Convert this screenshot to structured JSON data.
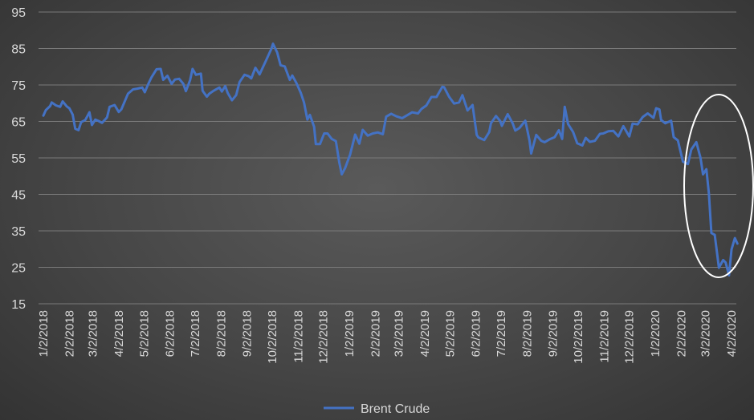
{
  "chart_data": {
    "type": "line",
    "title": "",
    "xlabel": "",
    "ylabel": "",
    "ylim": [
      15,
      95
    ],
    "yticks": [
      15,
      25,
      35,
      45,
      55,
      65,
      75,
      85,
      95
    ],
    "grid": true,
    "legend": "bottom",
    "xticks": [
      "1/2/2018",
      "2/2/2018",
      "3/2/2018",
      "4/2/2018",
      "5/2/2018",
      "6/2/2018",
      "7/2/2018",
      "8/2/2018",
      "9/2/2018",
      "10/2/2018",
      "11/2/2018",
      "12/2/2018",
      "1/2/2019",
      "2/2/2019",
      "3/2/2019",
      "4/2/2019",
      "5/2/2019",
      "6/2/2019",
      "7/2/2019",
      "8/2/2019",
      "9/2/2019",
      "10/2/2019",
      "11/2/2019",
      "12/2/2019",
      "1/2/2020",
      "2/2/2020",
      "3/2/2020",
      "4/2/2020"
    ],
    "series": [
      {
        "name": "Brent Crude",
        "color": "#4472c4",
        "points": [
          [
            "2018-01-02",
            66.6
          ],
          [
            "2018-01-05",
            68.1
          ],
          [
            "2018-01-10",
            69.2
          ],
          [
            "2018-01-12",
            70.2
          ],
          [
            "2018-01-17",
            69.4
          ],
          [
            "2018-01-22",
            69.0
          ],
          [
            "2018-01-25",
            70.5
          ],
          [
            "2018-01-30",
            69.1
          ],
          [
            "2018-02-02",
            68.6
          ],
          [
            "2018-02-06",
            66.9
          ],
          [
            "2018-02-09",
            63.0
          ],
          [
            "2018-02-13",
            62.6
          ],
          [
            "2018-02-16",
            64.8
          ],
          [
            "2018-02-21",
            65.4
          ],
          [
            "2018-02-26",
            67.5
          ],
          [
            "2018-03-01",
            64.0
          ],
          [
            "2018-03-05",
            65.5
          ],
          [
            "2018-03-09",
            65.1
          ],
          [
            "2018-03-13",
            64.6
          ],
          [
            "2018-03-19",
            66.1
          ],
          [
            "2018-03-22",
            69.0
          ],
          [
            "2018-03-28",
            69.5
          ],
          [
            "2018-04-02",
            67.6
          ],
          [
            "2018-04-05",
            68.3
          ],
          [
            "2018-04-10",
            71.0
          ],
          [
            "2018-04-13",
            72.6
          ],
          [
            "2018-04-19",
            73.8
          ],
          [
            "2018-04-24",
            74.0
          ],
          [
            "2018-04-30",
            74.3
          ],
          [
            "2018-05-03",
            73.0
          ],
          [
            "2018-05-07",
            75.2
          ],
          [
            "2018-05-11",
            77.1
          ],
          [
            "2018-05-17",
            79.3
          ],
          [
            "2018-05-22",
            79.4
          ],
          [
            "2018-05-25",
            76.4
          ],
          [
            "2018-05-30",
            77.5
          ],
          [
            "2018-06-04",
            75.3
          ],
          [
            "2018-06-08",
            76.5
          ],
          [
            "2018-06-13",
            76.7
          ],
          [
            "2018-06-18",
            75.3
          ],
          [
            "2018-06-21",
            73.3
          ],
          [
            "2018-06-26",
            76.3
          ],
          [
            "2018-06-29",
            79.4
          ],
          [
            "2018-07-03",
            77.8
          ],
          [
            "2018-07-09",
            78.1
          ],
          [
            "2018-07-11",
            73.4
          ],
          [
            "2018-07-16",
            71.8
          ],
          [
            "2018-07-19",
            72.6
          ],
          [
            "2018-07-24",
            73.4
          ],
          [
            "2018-07-31",
            74.3
          ],
          [
            "2018-08-03",
            73.2
          ],
          [
            "2018-08-07",
            74.7
          ],
          [
            "2018-08-10",
            72.8
          ],
          [
            "2018-08-15",
            70.8
          ],
          [
            "2018-08-20",
            72.2
          ],
          [
            "2018-08-24",
            75.8
          ],
          [
            "2018-08-30",
            77.8
          ],
          [
            "2018-09-04",
            77.4
          ],
          [
            "2018-09-07",
            76.8
          ],
          [
            "2018-09-12",
            79.7
          ],
          [
            "2018-09-17",
            77.9
          ],
          [
            "2018-09-20",
            79.4
          ],
          [
            "2018-09-25",
            81.9
          ],
          [
            "2018-10-01",
            84.9
          ],
          [
            "2018-10-03",
            86.3
          ],
          [
            "2018-10-08",
            83.9
          ],
          [
            "2018-10-12",
            80.4
          ],
          [
            "2018-10-17",
            80.1
          ],
          [
            "2018-10-23",
            76.4
          ],
          [
            "2018-10-26",
            77.6
          ],
          [
            "2018-10-31",
            75.5
          ],
          [
            "2018-11-05",
            72.9
          ],
          [
            "2018-11-09",
            70.2
          ],
          [
            "2018-11-13",
            65.5
          ],
          [
            "2018-11-16",
            66.8
          ],
          [
            "2018-11-21",
            63.5
          ],
          [
            "2018-11-23",
            58.8
          ],
          [
            "2018-11-28",
            58.8
          ],
          [
            "2018-12-03",
            61.7
          ],
          [
            "2018-12-07",
            61.7
          ],
          [
            "2018-12-12",
            60.2
          ],
          [
            "2018-12-17",
            59.6
          ],
          [
            "2018-12-21",
            53.8
          ],
          [
            "2018-12-24",
            50.5
          ],
          [
            "2018-12-28",
            52.2
          ],
          [
            "2019-01-03",
            55.9
          ],
          [
            "2019-01-09",
            61.4
          ],
          [
            "2019-01-14",
            58.9
          ],
          [
            "2019-01-18",
            62.7
          ],
          [
            "2019-01-24",
            61.1
          ],
          [
            "2019-01-30",
            61.7
          ],
          [
            "2019-02-05",
            62.0
          ],
          [
            "2019-02-11",
            61.5
          ],
          [
            "2019-02-15",
            66.3
          ],
          [
            "2019-02-21",
            67.1
          ],
          [
            "2019-02-27",
            66.4
          ],
          [
            "2019-03-06",
            65.9
          ],
          [
            "2019-03-12",
            66.7
          ],
          [
            "2019-03-18",
            67.5
          ],
          [
            "2019-03-25",
            67.2
          ],
          [
            "2019-03-29",
            68.4
          ],
          [
            "2019-04-04",
            69.4
          ],
          [
            "2019-04-10",
            71.7
          ],
          [
            "2019-04-16",
            71.7
          ],
          [
            "2019-04-23",
            74.5
          ],
          [
            "2019-04-25",
            74.4
          ],
          [
            "2019-05-01",
            71.8
          ],
          [
            "2019-05-07",
            69.9
          ],
          [
            "2019-05-13",
            70.2
          ],
          [
            "2019-05-17",
            72.2
          ],
          [
            "2019-05-23",
            68.0
          ],
          [
            "2019-05-29",
            69.5
          ],
          [
            "2019-06-03",
            61.3
          ],
          [
            "2019-06-05",
            60.6
          ],
          [
            "2019-06-12",
            59.9
          ],
          [
            "2019-06-18",
            62.1
          ],
          [
            "2019-06-20",
            64.5
          ],
          [
            "2019-06-26",
            66.5
          ],
          [
            "2019-07-01",
            65.1
          ],
          [
            "2019-07-03",
            63.8
          ],
          [
            "2019-07-10",
            67.0
          ],
          [
            "2019-07-16",
            64.4
          ],
          [
            "2019-07-19",
            62.5
          ],
          [
            "2019-07-24",
            63.2
          ],
          [
            "2019-07-31",
            65.2
          ],
          [
            "2019-08-05",
            59.8
          ],
          [
            "2019-08-07",
            56.2
          ],
          [
            "2019-08-13",
            61.3
          ],
          [
            "2019-08-19",
            59.7
          ],
          [
            "2019-08-23",
            59.3
          ],
          [
            "2019-08-29",
            60.1
          ],
          [
            "2019-09-04",
            60.7
          ],
          [
            "2019-09-09",
            62.6
          ],
          [
            "2019-09-13",
            60.2
          ],
          [
            "2019-09-16",
            69.0
          ],
          [
            "2019-09-20",
            64.3
          ],
          [
            "2019-09-26",
            62.1
          ],
          [
            "2019-10-01",
            59.0
          ],
          [
            "2019-10-07",
            58.4
          ],
          [
            "2019-10-11",
            60.5
          ],
          [
            "2019-10-16",
            59.4
          ],
          [
            "2019-10-22",
            59.7
          ],
          [
            "2019-10-28",
            61.6
          ],
          [
            "2019-11-01",
            61.7
          ],
          [
            "2019-11-07",
            62.3
          ],
          [
            "2019-11-13",
            62.4
          ],
          [
            "2019-11-19",
            60.9
          ],
          [
            "2019-11-25",
            63.7
          ],
          [
            "2019-12-02",
            60.9
          ],
          [
            "2019-12-06",
            64.4
          ],
          [
            "2019-12-12",
            64.2
          ],
          [
            "2019-12-18",
            66.2
          ],
          [
            "2019-12-24",
            67.2
          ],
          [
            "2019-12-31",
            66.0
          ],
          [
            "2020-01-03",
            68.6
          ],
          [
            "2020-01-07",
            68.3
          ],
          [
            "2020-01-09",
            65.4
          ],
          [
            "2020-01-14",
            64.5
          ],
          [
            "2020-01-21",
            65.2
          ],
          [
            "2020-01-24",
            60.7
          ],
          [
            "2020-01-29",
            59.8
          ],
          [
            "2020-02-04",
            54.0
          ],
          [
            "2020-02-10",
            53.3
          ],
          [
            "2020-02-14",
            57.3
          ],
          [
            "2020-02-20",
            59.3
          ],
          [
            "2020-02-25",
            55.0
          ],
          [
            "2020-02-28",
            50.5
          ],
          [
            "2020-03-03",
            51.9
          ],
          [
            "2020-03-06",
            45.3
          ],
          [
            "2020-03-09",
            34.4
          ],
          [
            "2020-03-13",
            33.9
          ],
          [
            "2020-03-18",
            24.9
          ],
          [
            "2020-03-23",
            27.0
          ],
          [
            "2020-03-26",
            26.3
          ],
          [
            "2020-03-30",
            22.8
          ],
          [
            "2020-04-02",
            29.9
          ],
          [
            "2020-04-06",
            33.0
          ],
          [
            "2020-04-09",
            31.5
          ]
        ]
      }
    ]
  },
  "annotation": {
    "shape": "ellipse",
    "color": "#ffffff"
  }
}
